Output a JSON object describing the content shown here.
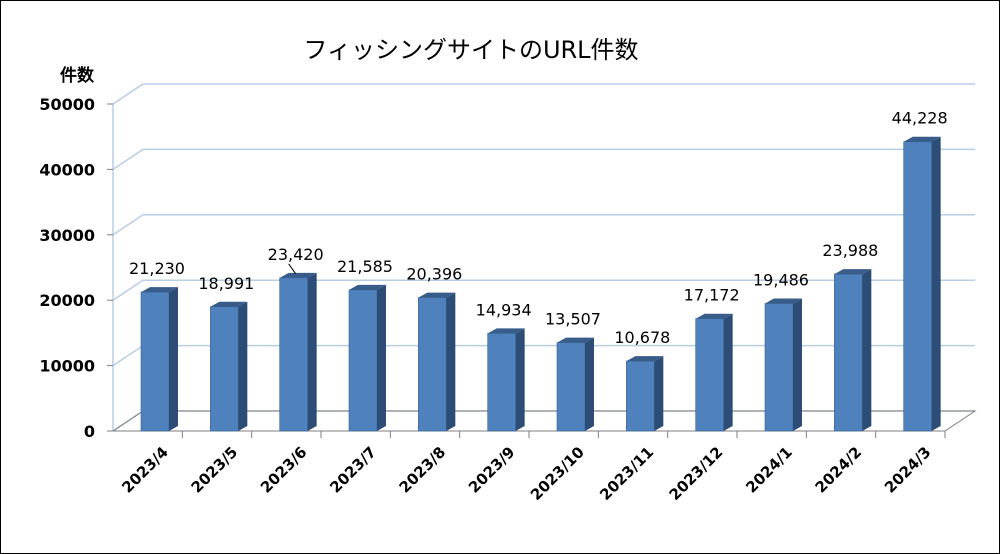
{
  "chart_data": {
    "type": "bar",
    "title": "フィッシングサイトのURL件数",
    "ylabel": "件数",
    "xlabel": "",
    "categories": [
      "2023/4",
      "2023/5",
      "2023/6",
      "2023/7",
      "2023/8",
      "2023/9",
      "2023/10",
      "2023/11",
      "2023/12",
      "2024/1",
      "2024/2",
      "2024/3"
    ],
    "values": [
      21230,
      18991,
      23420,
      21585,
      20396,
      14934,
      13507,
      10678,
      17172,
      19486,
      23988,
      44228
    ],
    "data_labels": [
      "21,230",
      "18,991",
      "23,420",
      "21,585",
      "20,396",
      "14,934",
      "13,507",
      "10,678",
      "17,172",
      "19,486",
      "23,988",
      "44,228"
    ],
    "yticks": [
      "0",
      "10000",
      "20000",
      "30000",
      "40000",
      "50000"
    ],
    "ylim": [
      0,
      50000
    ],
    "grid": true,
    "legend": "none",
    "colors": {
      "bar_front": "#4f81bd",
      "bar_side": "#2c4d75",
      "bar_top": "#385d8a",
      "gridline": "#b9cde5",
      "floor": "#7f7f7f"
    }
  }
}
